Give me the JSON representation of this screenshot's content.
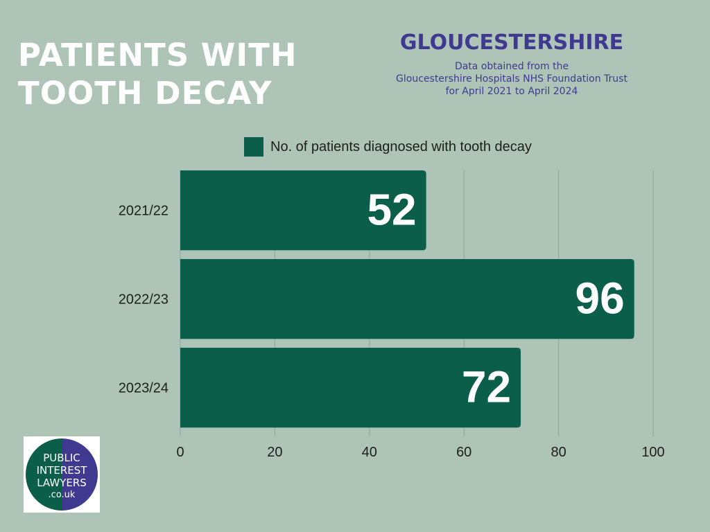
{
  "header": {
    "title_line1": "PATIENTS WITH",
    "title_line2": "TOOTH DECAY",
    "region": "GLOUCESTERSHIRE",
    "source_line1": "Data obtained from the",
    "source_line2": "Gloucestershire Hospitals NHS Foundation Trust",
    "source_line3": "for April 2021 to April 2024"
  },
  "logo": {
    "line1": "PUBLIC",
    "line2": "INTEREST",
    "line3": "LAWYERS",
    "line4": ".co.uk",
    "color_left": "#0a5e4a",
    "color_right": "#3f3a8f"
  },
  "colors": {
    "background": "#adc4b7",
    "bar": "#0a5e4a",
    "title": "#ffffff",
    "accent": "#3f3a8f"
  },
  "chart_data": {
    "type": "bar",
    "orientation": "horizontal",
    "categories": [
      "2021/22",
      "2022/23",
      "2023/24"
    ],
    "series": [
      {
        "name": "No. of patients diagnosed with tooth decay",
        "values": [
          52,
          96,
          72
        ]
      }
    ],
    "data_labels": [
      "52",
      "96",
      "72"
    ],
    "xlim": [
      0,
      100
    ],
    "xticks": [
      "0",
      "20",
      "40",
      "60",
      "80",
      "100"
    ],
    "grid": true,
    "legend_position": "top"
  }
}
